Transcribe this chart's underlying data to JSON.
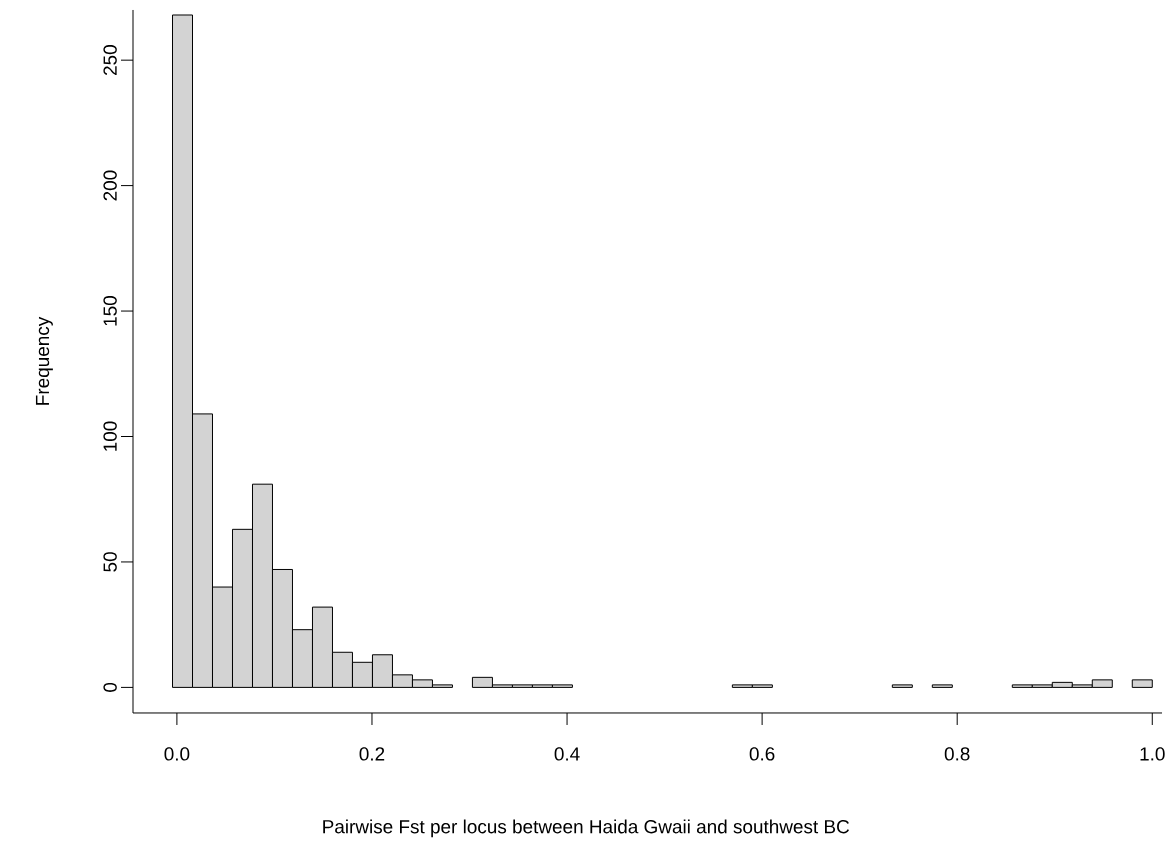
{
  "chart_data": {
    "type": "histogram",
    "xlabel": "Pairwise Fst per locus between Haida Gwaii and southwest BC",
    "ylabel": "Frequency",
    "bins": [
      -0.0045,
      0.016,
      0.0365,
      0.057,
      0.0775,
      0.098,
      0.1185,
      0.139,
      0.1595,
      0.18,
      0.2005,
      0.221,
      0.2415,
      0.262,
      0.2825,
      0.303,
      0.3235,
      0.344,
      0.3645,
      0.385,
      0.4055,
      0.426,
      0.4465,
      0.467,
      0.4875,
      0.508,
      0.5285,
      0.549,
      0.5695,
      0.59,
      0.6105,
      0.631,
      0.6515,
      0.672,
      0.6925,
      0.713,
      0.7335,
      0.754,
      0.7745,
      0.795,
      0.8155,
      0.836,
      0.8565,
      0.877,
      0.8975,
      0.918,
      0.9385,
      0.959,
      0.9795,
      1.0
    ],
    "values": [
      268,
      109,
      40,
      63,
      81,
      47,
      23,
      32,
      14,
      10,
      13,
      5,
      3,
      1,
      0,
      4,
      1,
      1,
      1,
      1,
      0,
      0,
      0,
      0,
      0,
      0,
      0,
      0,
      1,
      1,
      0,
      0,
      0,
      0,
      0,
      0,
      1,
      0,
      1,
      0,
      0,
      0,
      1,
      1,
      2,
      1,
      3,
      0,
      3
    ],
    "color": "#d3d3d3",
    "xlim": [
      -0.045,
      1.01
    ],
    "ylim": [
      -10.2,
      270
    ],
    "xticks": [
      {
        "value": 0,
        "label": "0.0"
      },
      {
        "value": 0.2,
        "label": "0.2"
      },
      {
        "value": 0.4,
        "label": "0.4"
      },
      {
        "value": 0.6,
        "label": "0.6"
      },
      {
        "value": 0.8,
        "label": "0.8"
      },
      {
        "value": 1.0,
        "label": "1.0"
      }
    ],
    "yticks": [
      0,
      50,
      100,
      150,
      200,
      250
    ],
    "grid": false
  }
}
